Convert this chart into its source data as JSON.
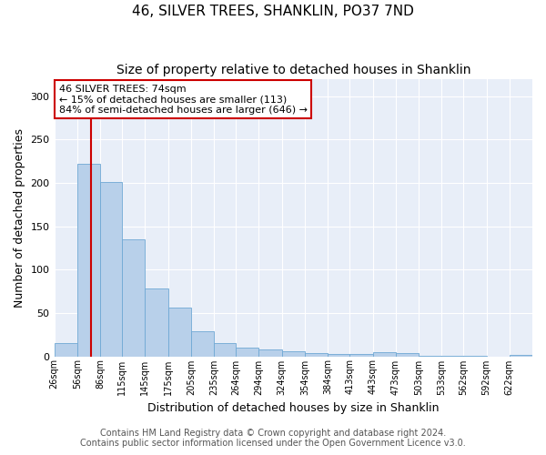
{
  "title": "46, SILVER TREES, SHANKLIN, PO37 7ND",
  "subtitle": "Size of property relative to detached houses in Shanklin",
  "xlabel": "Distribution of detached houses by size in Shanklin",
  "ylabel": "Number of detached properties",
  "footer_line1": "Contains HM Land Registry data © Crown copyright and database right 2024.",
  "footer_line2": "Contains public sector information licensed under the Open Government Licence v3.0.",
  "annotation_title": "46 SILVER TREES: 74sqm",
  "annotation_line2": "← 15% of detached houses are smaller (113)",
  "annotation_line3": "84% of semi-detached houses are larger (646) →",
  "bar_color": "#b8d0ea",
  "bar_edge_color": "#6fa8d4",
  "red_line_x": 74,
  "bin_edges": [
    26,
    56,
    86,
    115,
    145,
    175,
    205,
    235,
    264,
    294,
    324,
    354,
    384,
    413,
    443,
    473,
    503,
    533,
    562,
    592,
    622
  ],
  "bar_heights": [
    15,
    222,
    201,
    135,
    78,
    56,
    29,
    15,
    10,
    8,
    6,
    4,
    3,
    3,
    5,
    4,
    1,
    1,
    1,
    0,
    2
  ],
  "xlabels": [
    "26sqm",
    "56sqm",
    "86sqm",
    "115sqm",
    "145sqm",
    "175sqm",
    "205sqm",
    "235sqm",
    "264sqm",
    "294sqm",
    "324sqm",
    "354sqm",
    "384sqm",
    "413sqm",
    "443sqm",
    "473sqm",
    "503sqm",
    "533sqm",
    "562sqm",
    "592sqm",
    "622sqm"
  ],
  "ylim": [
    0,
    320
  ],
  "yticks": [
    0,
    50,
    100,
    150,
    200,
    250,
    300
  ],
  "plot_bg_color": "#e8eef8",
  "fig_bg_color": "#ffffff",
  "grid_color": "#ffffff",
  "title_fontsize": 11,
  "subtitle_fontsize": 10,
  "xlabel_fontsize": 9,
  "ylabel_fontsize": 9,
  "tick_fontsize": 8,
  "annotation_box_color": "#ffffff",
  "annotation_box_edge": "#cc0000",
  "red_line_color": "#cc0000",
  "footer_fontsize": 7,
  "footer_color": "#555555"
}
